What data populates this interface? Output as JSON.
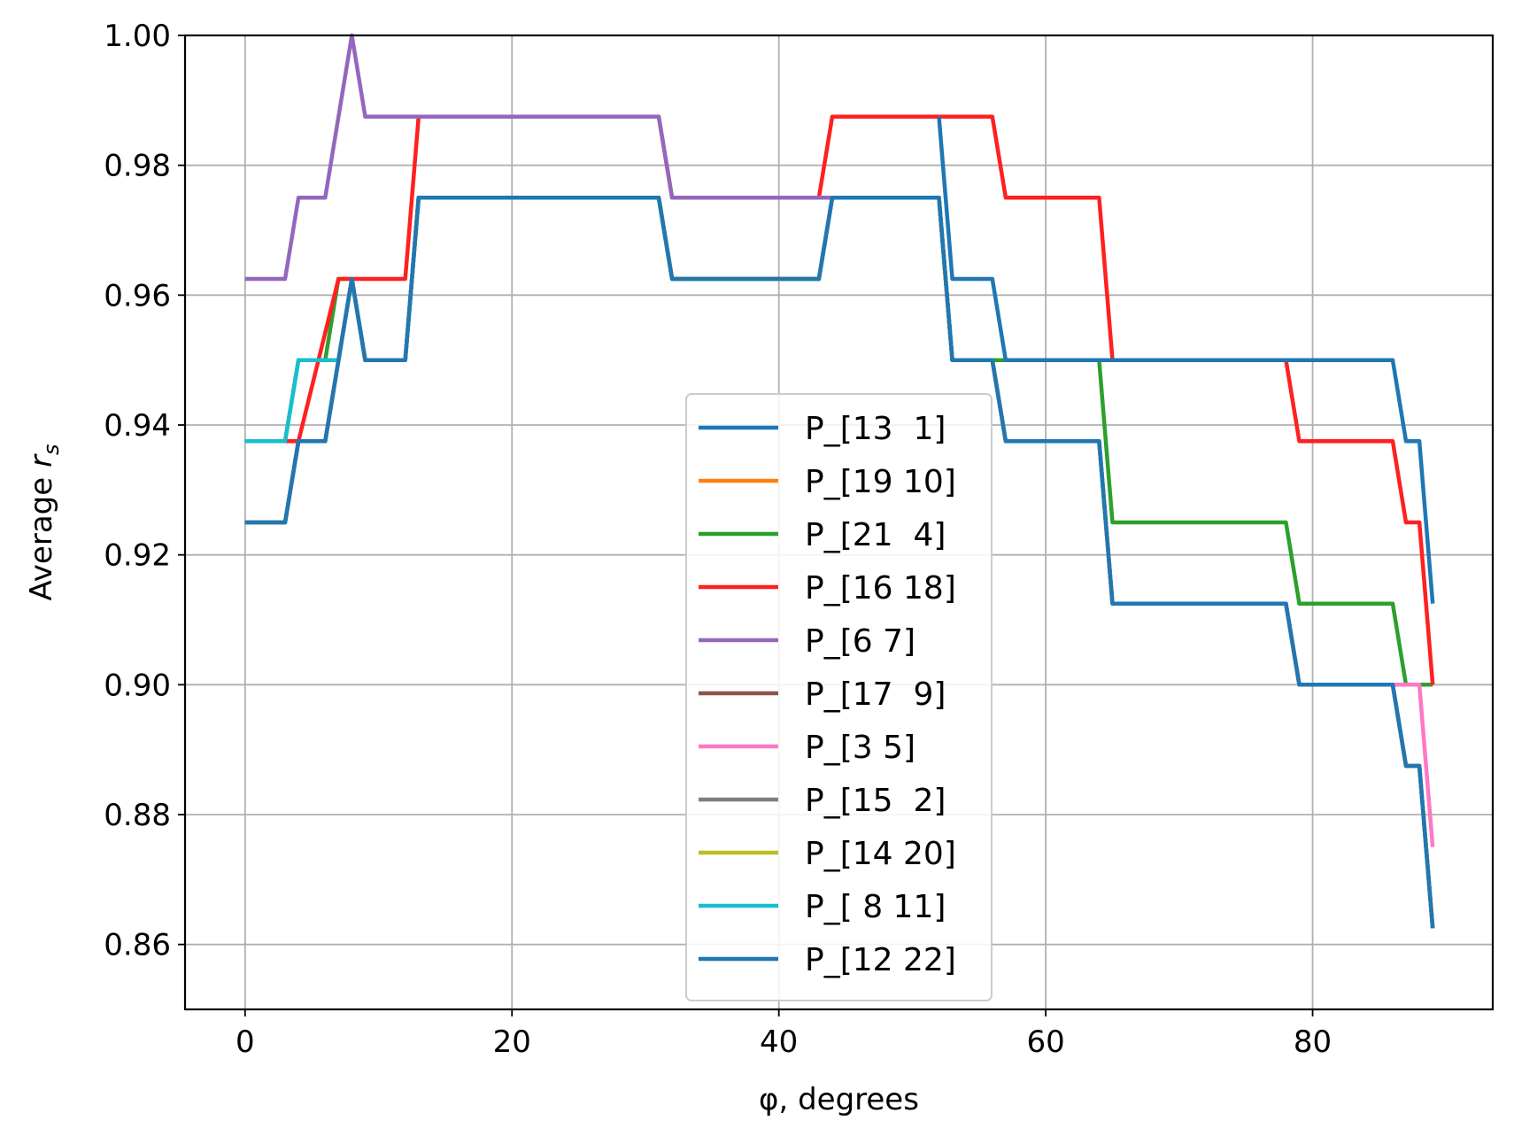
{
  "chart_data": {
    "type": "line",
    "xlabel": "φ, degrees",
    "ylabel_prefix": "Average ",
    "ylabel_var": "r",
    "ylabel_sub": "s",
    "xlim": [
      -4.5,
      93.5
    ],
    "ylim": [
      0.85,
      1.0
    ],
    "xticks": [
      0,
      20,
      40,
      60,
      80
    ],
    "xtick_labels": [
      "0",
      "20",
      "40",
      "60",
      "80"
    ],
    "yticks": [
      0.86,
      0.88,
      0.9,
      0.92,
      0.94,
      0.96,
      0.98,
      1.0
    ],
    "ytick_labels": [
      "0.86",
      "0.88",
      "0.90",
      "0.92",
      "0.94",
      "0.96",
      "0.98",
      "1.00"
    ],
    "grid": true,
    "legend_position": "center-right",
    "series": [
      {
        "name": "P_[13  1]",
        "color": "#1f77b4",
        "points": [
          [
            0,
            0.925
          ],
          [
            3,
            0.925
          ],
          [
            4,
            0.9375
          ],
          [
            6,
            0.9375
          ],
          [
            8,
            0.9625
          ],
          [
            9,
            0.95
          ],
          [
            12,
            0.95
          ],
          [
            13,
            0.975
          ],
          [
            31,
            0.975
          ],
          [
            32,
            0.9625
          ],
          [
            43,
            0.9625
          ],
          [
            44,
            0.975
          ],
          [
            52,
            0.975
          ],
          [
            53,
            0.95
          ],
          [
            56,
            0.95
          ],
          [
            57,
            0.9375
          ],
          [
            64,
            0.9375
          ],
          [
            65,
            0.9125
          ],
          [
            78,
            0.9125
          ],
          [
            79,
            0.9
          ],
          [
            86,
            0.9
          ],
          [
            87,
            0.8875
          ],
          [
            88,
            0.8875
          ],
          [
            89,
            0.8625
          ]
        ]
      },
      {
        "name": "P_[19 10]",
        "color": "#ff7f0e",
        "points": [
          [
            0,
            0.925
          ],
          [
            3,
            0.925
          ],
          [
            4,
            0.9375
          ],
          [
            6,
            0.9375
          ],
          [
            8,
            0.9625
          ],
          [
            9,
            0.95
          ],
          [
            12,
            0.95
          ],
          [
            13,
            0.975
          ],
          [
            31,
            0.975
          ],
          [
            32,
            0.9625
          ],
          [
            43,
            0.9625
          ],
          [
            44,
            0.975
          ],
          [
            52,
            0.975
          ],
          [
            53,
            0.95
          ],
          [
            56,
            0.95
          ],
          [
            57,
            0.9375
          ],
          [
            64,
            0.9375
          ],
          [
            65,
            0.9125
          ],
          [
            78,
            0.9125
          ],
          [
            79,
            0.9
          ],
          [
            86,
            0.9
          ],
          [
            87,
            0.8875
          ],
          [
            88,
            0.8875
          ],
          [
            89,
            0.8625
          ]
        ]
      },
      {
        "name": "P_[21  4]",
        "color": "#2ca02c",
        "points": [
          [
            0,
            0.9375
          ],
          [
            3,
            0.9375
          ],
          [
            4,
            0.95
          ],
          [
            6,
            0.95
          ],
          [
            7,
            0.9625
          ],
          [
            8,
            0.9625
          ],
          [
            9,
            0.95
          ],
          [
            12,
            0.95
          ],
          [
            13,
            0.975
          ],
          [
            31,
            0.975
          ],
          [
            32,
            0.9625
          ],
          [
            43,
            0.9625
          ],
          [
            44,
            0.975
          ],
          [
            52,
            0.975
          ],
          [
            53,
            0.95
          ],
          [
            64,
            0.95
          ],
          [
            65,
            0.925
          ],
          [
            78,
            0.925
          ],
          [
            79,
            0.9125
          ],
          [
            86,
            0.9125
          ],
          [
            87,
            0.9
          ],
          [
            89,
            0.9
          ]
        ]
      },
      {
        "name": "P_[16 18]",
        "color": "#ff2020",
        "points": [
          [
            0,
            0.9375
          ],
          [
            3,
            0.9375
          ],
          [
            4,
            0.9375
          ],
          [
            7,
            0.9625
          ],
          [
            12,
            0.9625
          ],
          [
            13,
            0.9875
          ],
          [
            31,
            0.9875
          ],
          [
            32,
            0.975
          ],
          [
            43,
            0.975
          ],
          [
            44,
            0.9875
          ],
          [
            56,
            0.9875
          ],
          [
            57,
            0.975
          ],
          [
            64,
            0.975
          ],
          [
            65,
            0.95
          ],
          [
            78,
            0.95
          ],
          [
            79,
            0.9375
          ],
          [
            86,
            0.9375
          ],
          [
            87,
            0.925
          ],
          [
            88,
            0.925
          ],
          [
            89,
            0.9
          ]
        ]
      },
      {
        "name": "P_[6 7]",
        "color": "#9467bd",
        "points": [
          [
            0,
            0.9625
          ],
          [
            3,
            0.9625
          ],
          [
            4,
            0.975
          ],
          [
            6,
            0.975
          ],
          [
            8,
            1.0
          ],
          [
            9,
            0.9875
          ],
          [
            31,
            0.9875
          ],
          [
            32,
            0.975
          ],
          [
            44,
            0.975
          ]
        ]
      },
      {
        "name": "P_[17  9]",
        "color": "#8c564b",
        "points": [
          [
            0,
            0.925
          ],
          [
            3,
            0.925
          ],
          [
            4,
            0.9375
          ],
          [
            6,
            0.9375
          ],
          [
            8,
            0.9625
          ],
          [
            9,
            0.95
          ],
          [
            12,
            0.95
          ],
          [
            13,
            0.975
          ],
          [
            31,
            0.975
          ],
          [
            32,
            0.9625
          ],
          [
            43,
            0.9625
          ],
          [
            44,
            0.975
          ],
          [
            52,
            0.975
          ],
          [
            53,
            0.95
          ],
          [
            56,
            0.95
          ],
          [
            57,
            0.9375
          ],
          [
            64,
            0.9375
          ],
          [
            65,
            0.9125
          ],
          [
            78,
            0.9125
          ],
          [
            79,
            0.9
          ],
          [
            86,
            0.9
          ],
          [
            87,
            0.8875
          ],
          [
            88,
            0.8875
          ],
          [
            89,
            0.8625
          ]
        ]
      },
      {
        "name": "P_[3 5]",
        "color": "#ff77c8",
        "points": [
          [
            79,
            0.9
          ],
          [
            86,
            0.9
          ],
          [
            87,
            0.9
          ],
          [
            88,
            0.9
          ],
          [
            89,
            0.875
          ]
        ]
      },
      {
        "name": "P_[15  2]",
        "color": "#7f7f7f",
        "points": [
          [
            0,
            0.925
          ],
          [
            3,
            0.925
          ],
          [
            4,
            0.9375
          ],
          [
            6,
            0.9375
          ],
          [
            8,
            0.9625
          ],
          [
            9,
            0.95
          ],
          [
            12,
            0.95
          ],
          [
            13,
            0.975
          ],
          [
            31,
            0.975
          ],
          [
            32,
            0.9625
          ],
          [
            43,
            0.9625
          ],
          [
            44,
            0.975
          ],
          [
            52,
            0.975
          ],
          [
            53,
            0.95
          ],
          [
            56,
            0.95
          ],
          [
            57,
            0.9375
          ],
          [
            64,
            0.9375
          ],
          [
            65,
            0.9125
          ],
          [
            78,
            0.9125
          ],
          [
            79,
            0.9
          ],
          [
            86,
            0.9
          ],
          [
            87,
            0.8875
          ],
          [
            88,
            0.8875
          ],
          [
            89,
            0.8625
          ]
        ]
      },
      {
        "name": "P_[14 20]",
        "color": "#bcbd22",
        "points": [
          [
            0,
            0.925
          ],
          [
            3,
            0.925
          ],
          [
            4,
            0.9375
          ],
          [
            6,
            0.9375
          ],
          [
            8,
            0.9625
          ],
          [
            9,
            0.95
          ],
          [
            12,
            0.95
          ],
          [
            13,
            0.975
          ],
          [
            31,
            0.975
          ],
          [
            32,
            0.9625
          ],
          [
            43,
            0.9625
          ],
          [
            44,
            0.975
          ],
          [
            52,
            0.975
          ],
          [
            53,
            0.95
          ],
          [
            56,
            0.95
          ],
          [
            57,
            0.9375
          ],
          [
            64,
            0.9375
          ],
          [
            65,
            0.9125
          ],
          [
            78,
            0.9125
          ],
          [
            79,
            0.9
          ],
          [
            86,
            0.9
          ],
          [
            87,
            0.8875
          ],
          [
            88,
            0.8875
          ],
          [
            89,
            0.8625
          ]
        ]
      },
      {
        "name": "P_[ 8 11]",
        "color": "#17becf",
        "points": [
          [
            0,
            0.9375
          ],
          [
            3,
            0.9375
          ],
          [
            4,
            0.95
          ],
          [
            7,
            0.95
          ]
        ]
      },
      {
        "name": "P_[12 22]",
        "color": "#1f77b4",
        "points": [
          [
            0,
            0.925
          ],
          [
            3,
            0.925
          ],
          [
            4,
            0.9375
          ],
          [
            6,
            0.9375
          ],
          [
            8,
            0.9625
          ],
          [
            9,
            0.95
          ],
          [
            12,
            0.95
          ],
          [
            13,
            0.975
          ],
          [
            31,
            0.975
          ],
          [
            32,
            0.9625
          ],
          [
            43,
            0.9625
          ],
          [
            44,
            0.975
          ],
          [
            52,
            0.975
          ],
          [
            53,
            0.95
          ],
          [
            56,
            0.95
          ],
          [
            57,
            0.9375
          ],
          [
            64,
            0.9375
          ],
          [
            65,
            0.9125
          ],
          [
            78,
            0.9125
          ],
          [
            79,
            0.9
          ],
          [
            86,
            0.9
          ],
          [
            87,
            0.8875
          ],
          [
            88,
            0.8875
          ],
          [
            89,
            0.8625
          ]
        ]
      },
      {
        "name": "",
        "color": "#1f77b4",
        "points": [
          [
            52,
            0.9875
          ],
          [
            53,
            0.9625
          ],
          [
            56,
            0.9625
          ],
          [
            57,
            0.95
          ],
          [
            86,
            0.95
          ],
          [
            87,
            0.9375
          ],
          [
            88,
            0.9375
          ],
          [
            89,
            0.9125
          ]
        ]
      }
    ]
  }
}
